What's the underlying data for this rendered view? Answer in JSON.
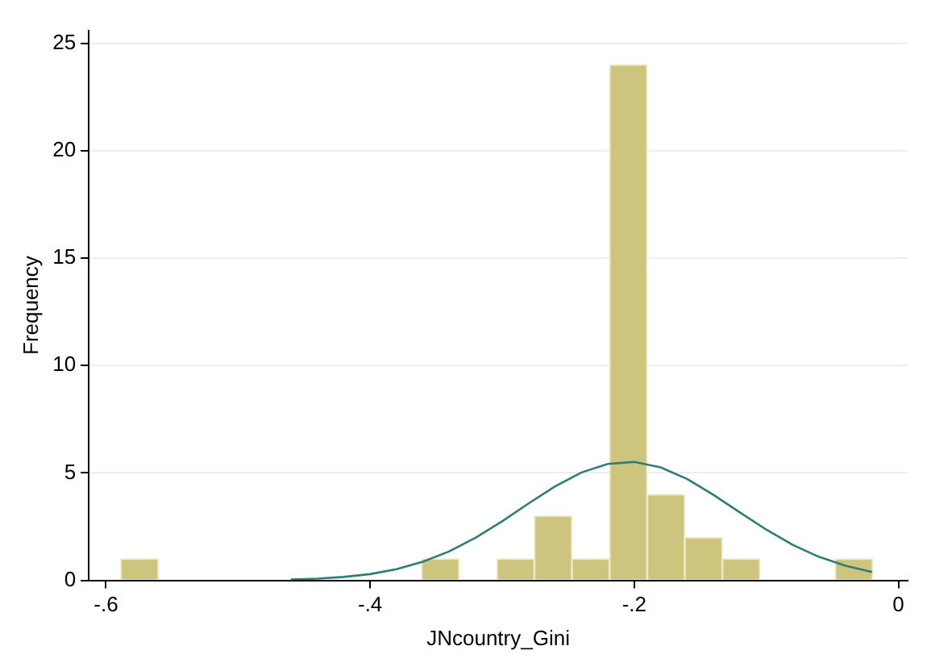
{
  "chart_data": {
    "type": "histogram",
    "xlabel": "JNcountry_Gini",
    "ylabel": "Frequency",
    "bins": [
      -0.5888,
      -0.5603,
      -0.5319,
      -0.5034,
      -0.4749,
      -0.4465,
      -0.418,
      -0.3895,
      -0.361,
      -0.3326,
      -0.3041,
      -0.2756,
      -0.2472,
      -0.2187,
      -0.1902,
      -0.1617,
      -0.1333,
      -0.1048,
      -0.0763,
      -0.0479,
      -0.0194
    ],
    "values": [
      1,
      0,
      0,
      0,
      0,
      0,
      0,
      0,
      1,
      0,
      1,
      3,
      1,
      24,
      4,
      2,
      1,
      0,
      0,
      1
    ],
    "color": "#cdc47e",
    "series": [
      {
        "type": "line",
        "color": "#2e7d74",
        "x": [
          -0.46,
          -0.44,
          -0.42,
          -0.4,
          -0.38,
          -0.36,
          -0.34,
          -0.32,
          -0.3,
          -0.28,
          -0.26,
          -0.24,
          -0.22,
          -0.2,
          -0.18,
          -0.16,
          -0.14,
          -0.12,
          -0.1,
          -0.08,
          -0.06,
          -0.04,
          -0.02
        ],
        "values": [
          0.04,
          0.08,
          0.16,
          0.29,
          0.52,
          0.87,
          1.35,
          1.99,
          2.75,
          3.58,
          4.37,
          5.02,
          5.42,
          5.51,
          5.26,
          4.72,
          3.98,
          3.16,
          2.36,
          1.65,
          1.09,
          0.68,
          0.39
        ]
      }
    ],
    "xlim": [
      -0.613,
      0.007
    ],
    "xticks": [
      {
        "value": -0.6,
        "label": "-.6"
      },
      {
        "value": -0.4,
        "label": "-.4"
      },
      {
        "value": -0.2,
        "label": "-.2"
      },
      {
        "value": 0,
        "label": "0"
      }
    ],
    "ylim": [
      0,
      25.6
    ],
    "yticks": [
      0,
      5,
      10,
      15,
      20,
      25
    ],
    "grid": "y",
    "legend": false,
    "marker": "none"
  }
}
